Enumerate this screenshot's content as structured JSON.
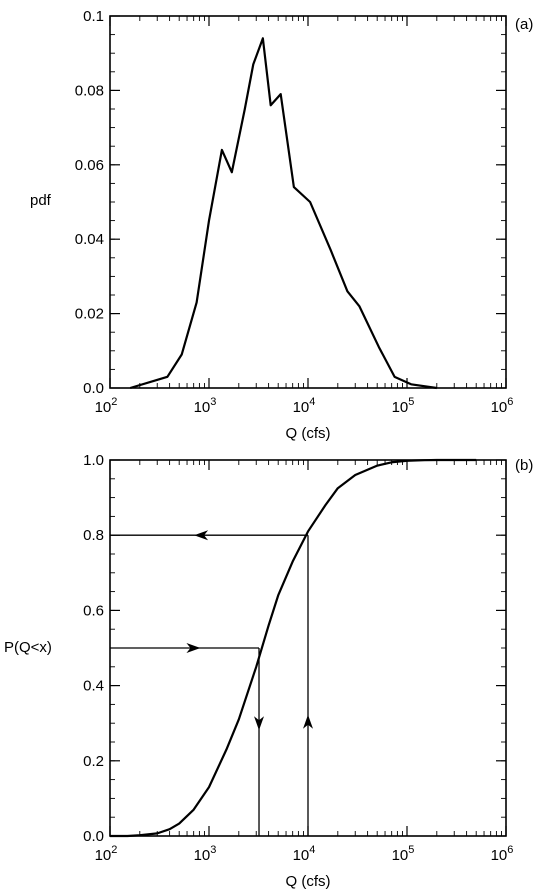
{
  "chart_data": [
    {
      "id": "a",
      "type": "line",
      "panel_label": "(a)",
      "xlabel": "Q (cfs)",
      "ylabel": "pdf",
      "xscale": "log",
      "xlim": [
        100,
        1000000
      ],
      "ylim": [
        0,
        0.1
      ],
      "x_ticks": [
        {
          "value": 100,
          "base": "10",
          "exp": "2"
        },
        {
          "value": 1000,
          "base": "10",
          "exp": "3"
        },
        {
          "value": 10000,
          "base": "10",
          "exp": "4"
        },
        {
          "value": 100000,
          "base": "10",
          "exp": "5"
        },
        {
          "value": 1000000,
          "base": "10",
          "exp": "6"
        }
      ],
      "y_ticks": [
        {
          "value": 0,
          "label": "0.0"
        },
        {
          "value": 0.02,
          "label": "0.02"
        },
        {
          "value": 0.04,
          "label": "0.04"
        },
        {
          "value": 0.06,
          "label": "0.06"
        },
        {
          "value": 0.08,
          "label": "0.08"
        },
        {
          "value": 0.1,
          "label": "0.1"
        }
      ],
      "y_minor_step": 0.005,
      "grid": false,
      "series": [
        {
          "x": [
            160,
            380,
            530,
            750,
            1000,
            1350,
            1700,
            2300,
            2800,
            3500,
            4200,
            5300,
            7200,
            10500,
            17000,
            25000,
            33000,
            52000,
            75000,
            110000,
            200000
          ],
          "y": [
            0.0,
            0.003,
            0.009,
            0.023,
            0.045,
            0.064,
            0.058,
            0.075,
            0.087,
            0.094,
            0.076,
            0.079,
            0.054,
            0.05,
            0.037,
            0.026,
            0.022,
            0.011,
            0.003,
            0.001,
            0.0
          ]
        }
      ]
    },
    {
      "id": "b",
      "type": "line",
      "panel_label": "(b)",
      "xlabel": "Q (cfs)",
      "ylabel": "P(Q<x)",
      "xscale": "log",
      "xlim": [
        100,
        1000000
      ],
      "ylim": [
        0,
        1.0
      ],
      "x_ticks": [
        {
          "value": 100,
          "base": "10",
          "exp": "2"
        },
        {
          "value": 1000,
          "base": "10",
          "exp": "3"
        },
        {
          "value": 10000,
          "base": "10",
          "exp": "4"
        },
        {
          "value": 100000,
          "base": "10",
          "exp": "5"
        },
        {
          "value": 1000000,
          "base": "10",
          "exp": "6"
        }
      ],
      "y_ticks": [
        {
          "value": 0,
          "label": "0.0"
        },
        {
          "value": 0.2,
          "label": "0.2"
        },
        {
          "value": 0.4,
          "label": "0.4"
        },
        {
          "value": 0.6,
          "label": "0.6"
        },
        {
          "value": 0.8,
          "label": "0.8"
        },
        {
          "value": 1.0,
          "label": "1.0"
        }
      ],
      "y_minor_step": 0.05,
      "grid": false,
      "series": [
        {
          "x": [
            100,
            150,
            200,
            300,
            400,
            500,
            700,
            1000,
            1500,
            2000,
            3000,
            4000,
            5000,
            7000,
            10000,
            15000,
            20000,
            30000,
            50000,
            70000,
            100000,
            150000,
            200000,
            300000,
            500000
          ],
          "y": [
            0.0,
            0.0,
            0.002,
            0.007,
            0.018,
            0.033,
            0.07,
            0.13,
            0.23,
            0.31,
            0.45,
            0.56,
            0.64,
            0.73,
            0.81,
            0.88,
            0.925,
            0.96,
            0.985,
            0.994,
            0.998,
            0.9995,
            1.0,
            1.0,
            1.0
          ]
        }
      ],
      "annotations": [
        {
          "kind": "lookup",
          "direction": "x-to-p",
          "x": 10000,
          "p": 0.8
        },
        {
          "kind": "lookup",
          "direction": "p-to-x",
          "x": 3200,
          "p": 0.5
        }
      ]
    }
  ]
}
